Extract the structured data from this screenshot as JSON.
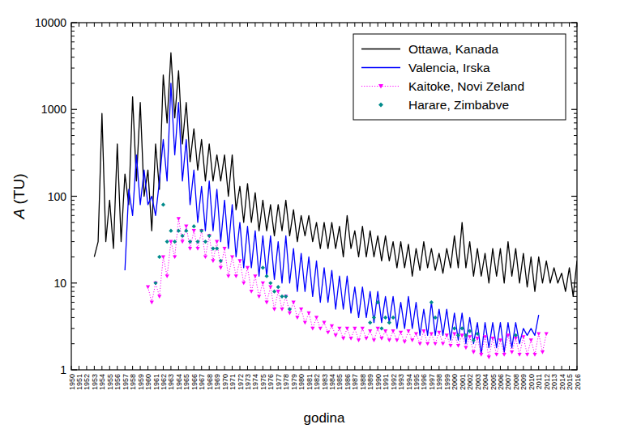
{
  "chart_data": {
    "type": "line",
    "x_label": "godina",
    "y_label": "A (TU)",
    "log": "y",
    "grid": false,
    "legend": "upper right",
    "xlim": [
      1950,
      2016
    ],
    "ylim": [
      1,
      10000
    ],
    "xticks": [
      1950,
      1951,
      1952,
      1953,
      1954,
      1955,
      1956,
      1957,
      1958,
      1959,
      1960,
      1961,
      1962,
      1963,
      1964,
      1965,
      1966,
      1967,
      1968,
      1969,
      1970,
      1971,
      1972,
      1973,
      1974,
      1975,
      1976,
      1977,
      1978,
      1979,
      1980,
      1981,
      1982,
      1983,
      1984,
      1985,
      1986,
      1987,
      1988,
      1989,
      1990,
      1991,
      1992,
      1993,
      1994,
      1995,
      1996,
      1997,
      1998,
      1999,
      2000,
      2001,
      2002,
      2003,
      2004,
      2005,
      2006,
      2007,
      2008,
      2009,
      2010,
      2011,
      2012,
      2013,
      2014,
      2015,
      2016
    ],
    "yticks": [
      1,
      10,
      100,
      1000,
      10000
    ],
    "x": [
      1953,
      1953.5,
      1954,
      1954.5,
      1955,
      1955.5,
      1956,
      1956.5,
      1957,
      1957.5,
      1958,
      1958.5,
      1959,
      1959.5,
      1960,
      1960.5,
      1961,
      1961.5,
      1962,
      1962.5,
      1963,
      1963.5,
      1964,
      1964.5,
      1965,
      1965.5,
      1966,
      1966.5,
      1967,
      1967.5,
      1968,
      1968.5,
      1969,
      1969.5,
      1970,
      1970.5,
      1971,
      1971.5,
      1972,
      1972.5,
      1973,
      1973.5,
      1974,
      1974.5,
      1975,
      1975.5,
      1976,
      1976.5,
      1977,
      1977.5,
      1978,
      1978.5,
      1979,
      1979.5,
      1980,
      1980.5,
      1981,
      1981.5,
      1982,
      1982.5,
      1983,
      1983.5,
      1984,
      1984.5,
      1985,
      1985.5,
      1986,
      1986.5,
      1987,
      1987.5,
      1988,
      1988.5,
      1989,
      1989.5,
      1990,
      1990.5,
      1991,
      1991.5,
      1992,
      1992.5,
      1993,
      1993.5,
      1994,
      1994.5,
      1995,
      1995.5,
      1996,
      1996.5,
      1997,
      1997.5,
      1998,
      1998.5,
      1999,
      1999.5,
      2000,
      2000.5,
      2001,
      2001.5,
      2002,
      2002.5,
      2003,
      2003.5,
      2004,
      2004.5,
      2005,
      2005.5,
      2006,
      2006.5,
      2007,
      2007.5,
      2008,
      2008.5,
      2009,
      2009.5,
      2010,
      2010.5,
      2011,
      2011.5,
      2012,
      2012.5,
      2013,
      2013.5,
      2014,
      2014.5,
      2015,
      2015.5,
      2016
    ],
    "series": [
      {
        "name": "Ottawa, Kanada",
        "color": "#000000",
        "type": "line",
        "line_style": "solid",
        "values": [
          20,
          30,
          900,
          30,
          90,
          25,
          400,
          30,
          180,
          80,
          1400,
          150,
          1200,
          100,
          200,
          40,
          400,
          120,
          2500,
          700,
          4500,
          800,
          2800,
          400,
          1200,
          250,
          600,
          200,
          450,
          150,
          400,
          150,
          300,
          150,
          300,
          100,
          300,
          70,
          130,
          50,
          140,
          50,
          110,
          40,
          90,
          40,
          80,
          35,
          80,
          40,
          90,
          35,
          70,
          30,
          60,
          35,
          60,
          30,
          50,
          25,
          50,
          25,
          50,
          25,
          45,
          20,
          60,
          25,
          40,
          20,
          45,
          20,
          40,
          20,
          35,
          18,
          35,
          18,
          30,
          15,
          30,
          15,
          28,
          12,
          25,
          14,
          30,
          15,
          25,
          14,
          22,
          13,
          25,
          15,
          35,
          15,
          50,
          15,
          30,
          12,
          25,
          12,
          22,
          10,
          25,
          12,
          25,
          10,
          30,
          12,
          25,
          10,
          22,
          9,
          20,
          8,
          20,
          10,
          18,
          10,
          15,
          10,
          13,
          8,
          15,
          7,
          18
        ]
      },
      {
        "name": "Valencia, Irska",
        "color": "#0000ff",
        "type": "line",
        "line_style": "solid",
        "values": [
          null,
          null,
          null,
          null,
          null,
          null,
          null,
          null,
          14,
          120,
          60,
          300,
          80,
          200,
          80,
          100,
          60,
          150,
          450,
          150,
          2000,
          300,
          1200,
          150,
          450,
          80,
          200,
          50,
          130,
          40,
          150,
          40,
          120,
          30,
          90,
          25,
          80,
          20,
          50,
          15,
          45,
          15,
          40,
          12,
          35,
          12,
          35,
          11,
          30,
          10,
          35,
          10,
          25,
          8,
          22,
          8,
          20,
          7,
          18,
          6,
          15,
          6,
          14,
          5,
          12,
          5,
          12,
          4.5,
          9,
          4,
          9,
          4,
          8,
          3.5,
          8,
          3.5,
          7,
          3.5,
          7,
          3,
          6,
          3,
          7,
          3,
          6,
          2.5,
          5,
          2.5,
          6,
          2.5,
          5,
          2.5,
          5,
          2.2,
          4.5,
          2.2,
          4.5,
          2,
          4,
          2,
          3.5,
          1.5,
          3.5,
          1.8,
          3.5,
          1.8,
          3.5,
          1.6,
          3.5,
          1.8,
          3.5,
          2,
          3,
          2.5,
          3,
          2.5,
          4.3,
          null,
          null,
          null,
          null,
          null,
          null,
          null,
          null,
          null,
          null
        ]
      },
      {
        "name": "Kaitoke, Novi Zeland",
        "color": "#ff00ff",
        "type": "line",
        "line_style": "dotted",
        "marker": "triangle-down",
        "values": [
          null,
          null,
          null,
          null,
          null,
          null,
          null,
          null,
          null,
          null,
          null,
          null,
          null,
          null,
          9,
          6,
          10,
          7,
          20,
          12,
          30,
          20,
          55,
          30,
          45,
          25,
          40,
          25,
          40,
          20,
          35,
          18,
          30,
          15,
          25,
          12,
          20,
          12,
          18,
          10,
          15,
          8,
          12,
          7,
          10,
          6,
          9,
          5,
          8,
          5,
          7,
          4.5,
          6,
          4,
          5,
          3.5,
          4.5,
          3,
          4,
          3,
          3.5,
          2.7,
          3.2,
          2.5,
          3,
          2.3,
          3,
          2.3,
          3,
          2.2,
          3,
          2.3,
          2.8,
          2.2,
          3,
          2.3,
          2.8,
          2.2,
          2.8,
          2.2,
          2.7,
          2.1,
          2.8,
          2.2,
          2.6,
          2,
          2.8,
          2,
          2.6,
          2,
          2.7,
          2,
          2.5,
          1.9,
          2.6,
          1.9,
          2.5,
          1.8,
          2.4,
          1.6,
          2.3,
          1.5,
          2.4,
          1.4,
          2.3,
          1.5,
          2.2,
          1.5,
          2.5,
          1.6,
          2.3,
          1.5,
          2.4,
          1.5,
          2.2,
          1.5,
          2.6,
          1.6,
          2.6,
          null,
          null,
          null,
          null,
          null,
          null,
          null,
          null
        ]
      },
      {
        "name": "Harare, Zimbabve",
        "color": "#008b8b",
        "type": "scatter",
        "marker": "diamond",
        "values": [
          null,
          null,
          null,
          null,
          null,
          null,
          null,
          null,
          null,
          null,
          null,
          null,
          null,
          null,
          null,
          null,
          10,
          20,
          80,
          30,
          40,
          30,
          40,
          35,
          40,
          30,
          45,
          30,
          40,
          30,
          35,
          25,
          25,
          18,
          null,
          null,
          null,
          null,
          null,
          null,
          null,
          null,
          null,
          null,
          15,
          12,
          10,
          8,
          9,
          7,
          7,
          5,
          null,
          null,
          null,
          null,
          null,
          null,
          null,
          null,
          null,
          null,
          null,
          null,
          null,
          null,
          null,
          null,
          null,
          null,
          null,
          null,
          3.5,
          4,
          6,
          3,
          4,
          3.5,
          4,
          null,
          null,
          null,
          null,
          null,
          null,
          null,
          null,
          null,
          6,
          4,
          null,
          null,
          null,
          null,
          3,
          2.5,
          3,
          2.5,
          2.8,
          2.2,
          2.6,
          null,
          null,
          null,
          null,
          null,
          null,
          null,
          null,
          null,
          2.5,
          null,
          null,
          null,
          null,
          null,
          null,
          null,
          null,
          null,
          null,
          null,
          null,
          null,
          null,
          null,
          null
        ]
      }
    ]
  }
}
